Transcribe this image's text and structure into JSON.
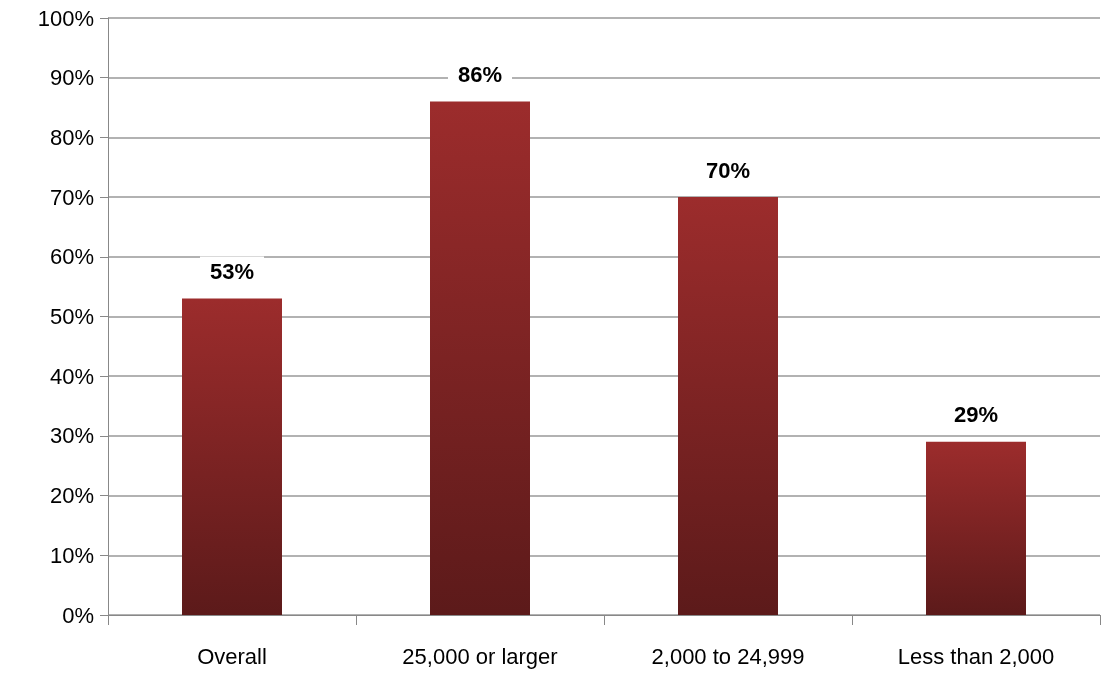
{
  "chart_data": {
    "type": "bar",
    "categories": [
      "Overall",
      "25,000 or larger",
      "2,000 to 24,999",
      "Less than 2,000"
    ],
    "values": [
      53,
      86,
      70,
      29
    ],
    "value_labels": [
      "53%",
      "86%",
      "70%",
      "29%"
    ],
    "color": "#8e2828",
    "ylim": [
      0,
      100
    ],
    "yticks": [
      {
        "value": 0,
        "label": "0%"
      },
      {
        "value": 10,
        "label": "10%"
      },
      {
        "value": 20,
        "label": "20%"
      },
      {
        "value": 30,
        "label": "30%"
      },
      {
        "value": 40,
        "label": "40%"
      },
      {
        "value": 50,
        "label": "50%"
      },
      {
        "value": 60,
        "label": "60%"
      },
      {
        "value": 70,
        "label": "70%"
      },
      {
        "value": 80,
        "label": "80%"
      },
      {
        "value": 90,
        "label": "90%"
      },
      {
        "value": 100,
        "label": "100%"
      }
    ],
    "grid": true
  }
}
